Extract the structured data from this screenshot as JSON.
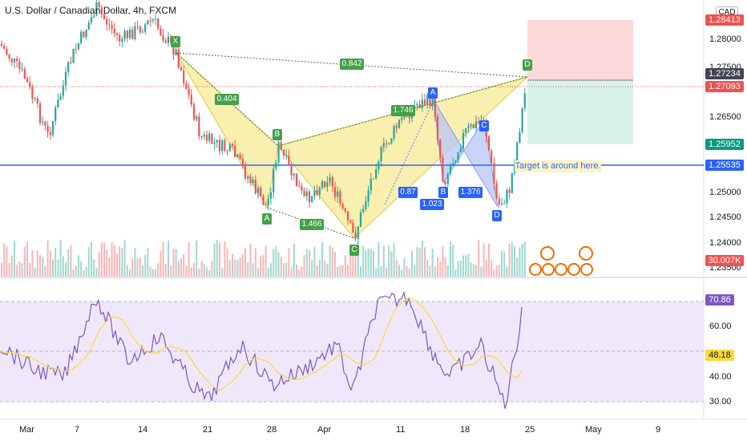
{
  "header": {
    "title": "U.S. Dollar / Canadian Dollar, 4h, FXCM",
    "currency_badge": "CAD"
  },
  "colors": {
    "up": "#26a69a",
    "down": "#ef5350",
    "pattern_yellow": "#f7e98d",
    "pattern_blue": "#b7c8f5",
    "rsi_line": "#7e57c2",
    "rsi_ma": "#fdd835",
    "rsi_band": "#efe8fa",
    "hline": "#2962ff",
    "target_box": "#fbd2d2",
    "stop_box": "#d1efe8"
  },
  "price_axis": {
    "ticks": [
      "1.28000",
      "1.27500",
      "1.26500",
      "1.25000",
      "1.24500",
      "1.24000",
      "1.23500"
    ],
    "badges": [
      {
        "label": "1.28413",
        "color": "#ef5350"
      },
      {
        "label": "1.27234",
        "color": "#434651"
      },
      {
        "label": "1.27093",
        "color": "#ef5350"
      },
      {
        "label": "1.25952",
        "color": "#089981"
      },
      {
        "label": "1.25535",
        "color": "#2962ff"
      },
      {
        "label": "30.007K",
        "color": "#ef5350"
      }
    ]
  },
  "rsi_axis": {
    "ticks": [
      "60.00",
      "40.00",
      "30.00"
    ],
    "badges": [
      {
        "label": "70.86",
        "color": "#7e57c2"
      },
      {
        "label": "48.18",
        "color": "#fdd835"
      }
    ]
  },
  "time_axis": {
    "labels": [
      "Mar",
      "7",
      "14",
      "21",
      "28",
      "Apr",
      "11",
      "18",
      "25",
      "May",
      "9"
    ]
  },
  "pattern_points": {
    "yellow": [
      "X",
      "A",
      "B",
      "C",
      "D"
    ],
    "blue": [
      "A",
      "B",
      "C",
      "D"
    ]
  },
  "ratios": {
    "yellow": [
      "0.404",
      "1.466",
      "1.746",
      "0.842"
    ],
    "blue": [
      "1.023",
      "1.376",
      "0.87"
    ]
  },
  "note": "Target is around here."
}
